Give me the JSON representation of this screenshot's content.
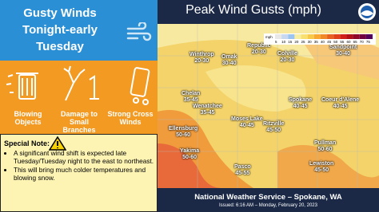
{
  "header": {
    "title_lines": [
      "Gusty Winds",
      "Tonight-early",
      "Tuesday"
    ]
  },
  "hazards": [
    "Blowing Objects",
    "Damage to Small Branches",
    "Strong Cross Winds"
  ],
  "special_note": {
    "title": "Special Note:",
    "bullets": [
      "A significant wind shift is expected late Tuesday/Tuesday night to the east to northeast.",
      "This will bring much colder temperatures and blowing snow."
    ]
  },
  "map": {
    "title": "Peak Wind Gusts (mph)",
    "legend_unit": "mph",
    "legend_ticks": [
      5,
      10,
      15,
      20,
      25,
      30,
      35,
      40,
      45,
      50,
      55,
      60,
      65,
      70,
      75
    ],
    "cities": [
      {
        "name": "Winthrop",
        "range": "20-30"
      },
      {
        "name": "Omak",
        "range": "30-40"
      },
      {
        "name": "Republic",
        "range": "20-30"
      },
      {
        "name": "Colville",
        "range": "20-30"
      },
      {
        "name": "Sandpoint",
        "range": "30-40"
      },
      {
        "name": "Chelan",
        "range": "35-45"
      },
      {
        "name": "Wenatchee",
        "range": "35-45"
      },
      {
        "name": "Moses Lake",
        "range": "40-45"
      },
      {
        "name": "Spokane",
        "range": "40-45"
      },
      {
        "name": "Coeur d'Alene",
        "range": "40-45"
      },
      {
        "name": "Ritzville",
        "range": "45-50"
      },
      {
        "name": "Ellensburg",
        "range": "50-60"
      },
      {
        "name": "Yakima",
        "range": "50-60"
      },
      {
        "name": "Pullman",
        "range": "50-60"
      },
      {
        "name": "Pasco",
        "range": "45-55"
      },
      {
        "name": "Lewiston",
        "range": "45-50"
      }
    ]
  },
  "footer": {
    "office": "National Weather Service – Spokane, WA",
    "issued": "Issued: 6:16 AM – Monday, February 20, 2023"
  }
}
